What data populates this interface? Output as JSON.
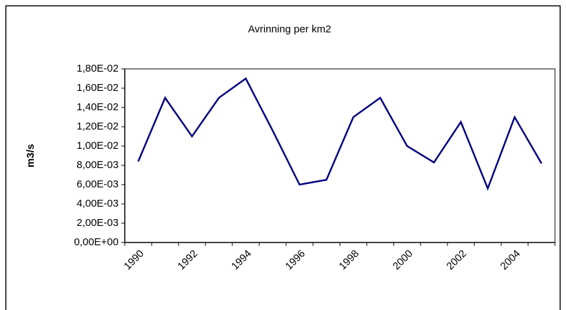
{
  "chart_data": {
    "type": "line",
    "title": "Avrinning per km2",
    "y_label": "m3/s",
    "categories": [
      "1990",
      null,
      "1992",
      null,
      "1994",
      null,
      "1996",
      null,
      "1998",
      null,
      "2000",
      null,
      "2002",
      null,
      "2004",
      null
    ],
    "values": [
      0.0084,
      0.015,
      0.011,
      0.015,
      0.017,
      0.0116,
      0.006,
      0.0065,
      0.013,
      0.015,
      0.01,
      0.0083,
      0.0125,
      0.0056,
      0.013,
      0.0082
    ],
    "color": "#000080",
    "ylim": [
      0,
      0.018
    ],
    "yticks": [
      {
        "value": 0,
        "label": "0,00E+00"
      },
      {
        "value": 0.002,
        "label": "2,00E-03"
      },
      {
        "value": 0.004,
        "label": "4,00E-03"
      },
      {
        "value": 0.006,
        "label": "6,00E-03"
      },
      {
        "value": 0.008,
        "label": "8,00E-03"
      },
      {
        "value": 0.01,
        "label": "1,00E-02"
      },
      {
        "value": 0.012,
        "label": "1,20E-02"
      },
      {
        "value": 0.014,
        "label": "1,40E-02"
      },
      {
        "value": 0.016,
        "label": "1,60E-02"
      },
      {
        "value": 0.018,
        "label": "1,80E-02"
      }
    ],
    "grid": false
  }
}
